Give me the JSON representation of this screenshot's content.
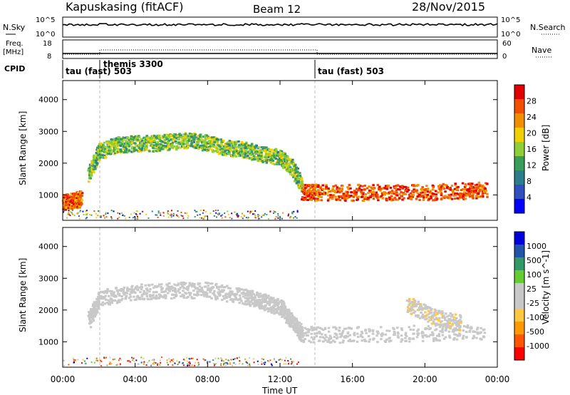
{
  "header": {
    "station": "Kapuskasing (fitACF)",
    "beam": "Beam 12",
    "date": "28/Nov/2015"
  },
  "panels": {
    "nsky": {
      "label": "N.Sky",
      "tick_top": "10^5",
      "tick_bot": "10^0",
      "right_label": "N.Search"
    },
    "freq": {
      "label_top": "Freq.",
      "label_bot": "[MHz]",
      "left_top": "18",
      "left_bot": "8",
      "right_top": "60",
      "right_bot": "0",
      "right_label": "Nave"
    },
    "cpid": {
      "label": "CPID",
      "segments": [
        "tau (fast) 503",
        "themis 3300",
        "tau (fast) 503"
      ]
    }
  },
  "colors": {
    "power": [
      "#0000ff",
      "#3050c0",
      "#2e7d8c",
      "#3a9e5a",
      "#8fcf3a",
      "#f0d000",
      "#f09000",
      "#f05000",
      "#e00000"
    ],
    "velocity": [
      "#ff0000",
      "#ff5500",
      "#ff9900",
      "#ffc840",
      "#c8c8c8",
      "#c8c8c8",
      "#66cc33",
      "#339966",
      "#2255aa",
      "#0000dd"
    ]
  },
  "chart_data": [
    {
      "type": "heatmap",
      "title": "",
      "xlabel": "",
      "ylabel": "Slant Range [km]",
      "x_ticks": [
        "00:00",
        "04:00",
        "08:00",
        "12:00",
        "16:00",
        "20:00",
        "00:00"
      ],
      "y_ticks": [
        "1000",
        "2000",
        "3000",
        "4000"
      ],
      "ylim": [
        200,
        4600
      ],
      "colorbar": {
        "label": "Power [dB]",
        "ticks": [
          "4",
          "8",
          "12",
          "16",
          "20",
          "24",
          "28"
        ],
        "range": [
          0,
          30
        ]
      },
      "features": [
        {
          "name": "band-a",
          "t": [
            1.4,
            2.0,
            3.0,
            4.0,
            5.0,
            6.0,
            7.0,
            8.0,
            9.0,
            10.0,
            11.0,
            12.0,
            12.6,
            13.2
          ],
          "range_km": [
            1700,
            2400,
            2600,
            2650,
            2650,
            2700,
            2750,
            2650,
            2500,
            2450,
            2300,
            2200,
            1900,
            1300
          ],
          "power_db": 14
        },
        {
          "name": "band-b",
          "t": [
            13.2,
            14.0,
            16.0,
            18.0,
            20.0,
            22.0,
            23.4
          ],
          "range_km": [
            1100,
            1100,
            1100,
            1100,
            1100,
            1150,
            1200
          ],
          "power_db": 26
        },
        {
          "name": "band-c",
          "t": [
            0.0,
            0.6,
            1.0
          ],
          "range_km": [
            800,
            850,
            900
          ],
          "power_db": 25
        }
      ]
    },
    {
      "type": "heatmap",
      "title": "",
      "xlabel": "Time UT",
      "ylabel": "Slant Range [km]",
      "x_ticks": [
        "00:00",
        "04:00",
        "08:00",
        "12:00",
        "16:00",
        "20:00",
        "00:00"
      ],
      "y_ticks": [
        "1000",
        "2000",
        "3000",
        "4000"
      ],
      "ylim": [
        200,
        4600
      ],
      "colorbar": {
        "label": "Velocity [m s^-1]",
        "ticks": [
          "1000",
          "500",
          "100",
          "25",
          "-25",
          "-100",
          "-500",
          "-1000"
        ],
        "range": [
          -1200,
          1200
        ]
      },
      "features": [
        {
          "name": "band-a",
          "t": [
            1.4,
            2.0,
            4.0,
            6.0,
            8.0,
            10.0,
            11.0,
            12.0,
            12.6,
            13.2
          ],
          "range_km": [
            1700,
            2400,
            2600,
            2650,
            2650,
            2450,
            2300,
            2100,
            1700,
            1250
          ],
          "velocity": 0
        },
        {
          "name": "band-b",
          "t": [
            13.2,
            16.0,
            20.0,
            23.4
          ],
          "range_km": [
            1250,
            1250,
            1300,
            1350
          ],
          "velocity": 0
        },
        {
          "name": "band-c",
          "t": [
            19.0,
            20.5,
            22.0
          ],
          "range_km": [
            2200,
            1800,
            1600
          ],
          "velocity": -150
        }
      ]
    }
  ]
}
